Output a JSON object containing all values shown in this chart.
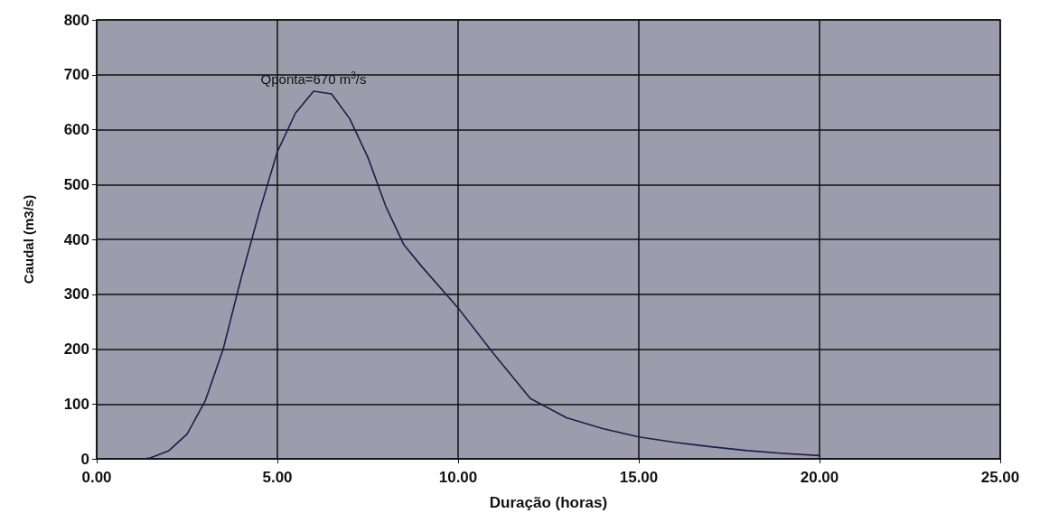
{
  "chart_data": {
    "type": "line",
    "xlabel": "Duração (horas)",
    "ylabel": "Caudal (m3/s)",
    "x": [
      1.3,
      1.5,
      2,
      2.5,
      3,
      3.5,
      4,
      4.5,
      5,
      5.5,
      6,
      6.5,
      7,
      7.5,
      8,
      8.5,
      9,
      10,
      11,
      12,
      13,
      14,
      15,
      16,
      17,
      18,
      19,
      20
    ],
    "series": [
      {
        "color": "#1a1f4a",
        "values": [
          0,
          2,
          15,
          45,
          105,
          200,
          330,
          450,
          560,
          630,
          670,
          665,
          620,
          550,
          460,
          390,
          350,
          275,
          190,
          110,
          75,
          55,
          40,
          30,
          22,
          15,
          10,
          6
        ]
      }
    ],
    "xlim": [
      0,
      25
    ],
    "xticks": [
      {
        "value": 0,
        "label": "0.00"
      },
      {
        "value": 5,
        "label": "5.00"
      },
      {
        "value": 10,
        "label": "10.00"
      },
      {
        "value": 15,
        "label": "15.00"
      },
      {
        "value": 20,
        "label": "20.00"
      },
      {
        "value": 25,
        "label": "25.00"
      }
    ],
    "ylim": [
      0,
      800
    ],
    "yticks": [
      0,
      100,
      200,
      300,
      400,
      500,
      600,
      700,
      800
    ],
    "grid": true,
    "marker": "none",
    "line_style": "solid",
    "annotations": [
      {
        "text": "Qponta=670 m$^{3}$/s",
        "x": 6,
        "y": 670
      }
    ]
  }
}
